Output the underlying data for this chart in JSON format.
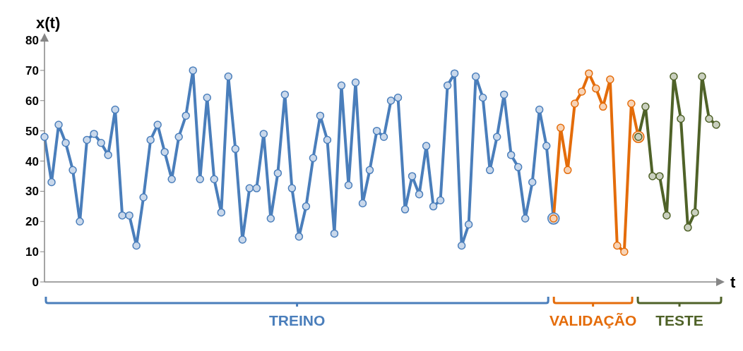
{
  "chart_data": {
    "type": "line",
    "xlabel": "t",
    "ylabel": "x(t)",
    "ylim": [
      0,
      80
    ],
    "yticks": [
      0,
      10,
      20,
      30,
      40,
      50,
      60,
      70,
      80
    ],
    "grid": false,
    "legend": "bottom",
    "marker": "circle",
    "line_style": "solid",
    "categories": [
      null,
      null,
      null,
      null,
      null,
      null,
      null,
      null,
      null,
      null,
      null,
      null,
      null,
      null,
      null,
      null,
      null,
      null,
      null,
      null,
      null,
      null,
      null,
      null,
      null,
      null,
      null,
      null,
      null,
      null,
      null,
      null,
      null,
      null,
      null,
      null,
      null,
      null,
      null,
      null,
      null,
      null,
      null,
      null,
      null,
      null,
      null,
      null,
      null,
      null,
      null,
      null,
      null,
      null,
      null,
      null,
      null,
      null,
      null,
      null,
      null,
      null,
      null,
      null,
      null,
      null,
      null,
      null,
      null,
      null,
      null,
      null,
      null,
      null,
      null,
      null,
      null,
      null,
      null,
      null,
      null,
      null,
      null,
      null,
      null,
      null,
      null,
      null,
      null,
      null,
      null,
      null,
      null,
      null,
      null,
      null
    ],
    "series": [
      {
        "name": "TREINO",
        "color": "#4a7ebb",
        "values": [
          48,
          33,
          52,
          46,
          37,
          20,
          47,
          49,
          46,
          42,
          57,
          22,
          22,
          12,
          28,
          47,
          52,
          43,
          34,
          48,
          55,
          70,
          34,
          61,
          34,
          23,
          68,
          44,
          14,
          31,
          31,
          49,
          21,
          36,
          62,
          31,
          15,
          25,
          41,
          55,
          47,
          16,
          65,
          32,
          66,
          26,
          37,
          50,
          48,
          60,
          61,
          24,
          35,
          29,
          45,
          25,
          27,
          65,
          69,
          12,
          19,
          68,
          61,
          37,
          48,
          62,
          42,
          38,
          21,
          33,
          57,
          45,
          21,
          null,
          null,
          null,
          null,
          null,
          null,
          null,
          null,
          null,
          null,
          null,
          null,
          null,
          null,
          null,
          null,
          null,
          null,
          null,
          null,
          null,
          null,
          null
        ]
      },
      {
        "name": "VALIDAÇÃO",
        "color": "#e46c0a",
        "values": [
          null,
          null,
          null,
          null,
          null,
          null,
          null,
          null,
          null,
          null,
          null,
          null,
          null,
          null,
          null,
          null,
          null,
          null,
          null,
          null,
          null,
          null,
          null,
          null,
          null,
          null,
          null,
          null,
          null,
          null,
          null,
          null,
          null,
          null,
          null,
          null,
          null,
          null,
          null,
          null,
          null,
          null,
          null,
          null,
          null,
          null,
          null,
          null,
          null,
          null,
          null,
          null,
          null,
          null,
          null,
          null,
          null,
          null,
          null,
          null,
          null,
          null,
          null,
          null,
          null,
          null,
          null,
          null,
          null,
          null,
          null,
          null,
          21,
          51,
          37,
          59,
          63,
          69,
          64,
          58,
          67,
          12,
          10,
          59,
          48,
          null,
          null,
          null,
          null,
          null,
          null,
          null,
          null,
          null,
          null,
          null
        ]
      },
      {
        "name": "TESTE",
        "color": "#4f6228",
        "values": [
          null,
          null,
          null,
          null,
          null,
          null,
          null,
          null,
          null,
          null,
          null,
          null,
          null,
          null,
          null,
          null,
          null,
          null,
          null,
          null,
          null,
          null,
          null,
          null,
          null,
          null,
          null,
          null,
          null,
          null,
          null,
          null,
          null,
          null,
          null,
          null,
          null,
          null,
          null,
          null,
          null,
          null,
          null,
          null,
          null,
          null,
          null,
          null,
          null,
          null,
          null,
          null,
          null,
          null,
          null,
          null,
          null,
          null,
          null,
          null,
          null,
          null,
          null,
          null,
          null,
          null,
          null,
          null,
          null,
          null,
          null,
          null,
          null,
          null,
          null,
          null,
          null,
          null,
          null,
          null,
          null,
          null,
          null,
          null,
          48,
          58,
          35,
          35,
          22,
          68,
          54,
          18,
          23,
          68,
          54,
          52
        ]
      }
    ]
  }
}
